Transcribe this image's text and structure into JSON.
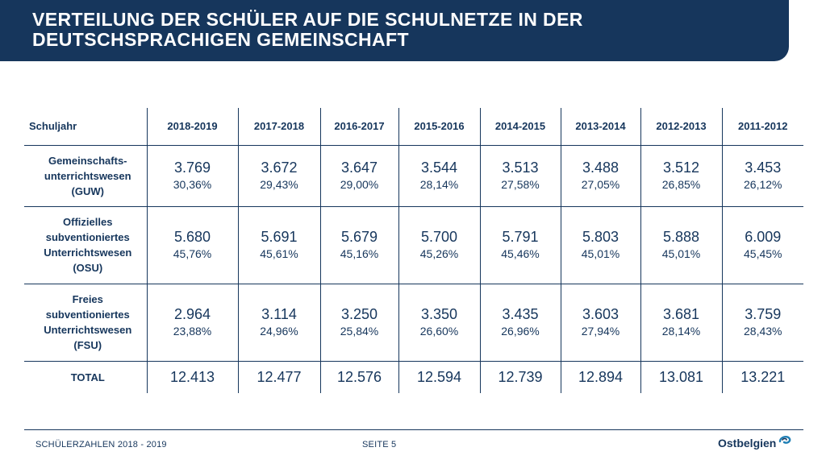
{
  "title": "VERTEILUNG DER SCHÜLER AUF DIE SCHULNETZE IN DER DEUTSCHSPRACHIGEN GEMEINSCHAFT",
  "table": {
    "header_label": "Schuljahr",
    "years": [
      "2018-2019",
      "2017-2018",
      "2016-2017",
      "2015-2016",
      "2014-2015",
      "2013-2014",
      "2012-2013",
      "2011-2012"
    ],
    "rows": [
      {
        "label_lines": [
          "Gemeinschafts-",
          "unterrichtswesen",
          "(GUW)"
        ],
        "values": [
          {
            "count": "3.769",
            "pct": "30,36%"
          },
          {
            "count": "3.672",
            "pct": "29,43%"
          },
          {
            "count": "3.647",
            "pct": "29,00%"
          },
          {
            "count": "3.544",
            "pct": "28,14%"
          },
          {
            "count": "3.513",
            "pct": "27,58%"
          },
          {
            "count": "3.488",
            "pct": "27,05%"
          },
          {
            "count": "3.512",
            "pct": "26,85%"
          },
          {
            "count": "3.453",
            "pct": "26,12%"
          }
        ]
      },
      {
        "label_lines": [
          "Offizielles",
          "subventioniertes",
          "Unterrichtswesen",
          "(OSU)"
        ],
        "values": [
          {
            "count": "5.680",
            "pct": "45,76%"
          },
          {
            "count": "5.691",
            "pct": "45,61%"
          },
          {
            "count": "5.679",
            "pct": "45,16%"
          },
          {
            "count": "5.700",
            "pct": "45,26%"
          },
          {
            "count": "5.791",
            "pct": "45,46%"
          },
          {
            "count": "5.803",
            "pct": "45,01%"
          },
          {
            "count": "5.888",
            "pct": "45,01%"
          },
          {
            "count": "6.009",
            "pct": "45,45%"
          }
        ]
      },
      {
        "label_lines": [
          "Freies",
          "subventioniertes",
          "Unterrichtswesen",
          "(FSU)"
        ],
        "values": [
          {
            "count": "2.964",
            "pct": "23,88%"
          },
          {
            "count": "3.114",
            "pct": "24,96%"
          },
          {
            "count": "3.250",
            "pct": "25,84%"
          },
          {
            "count": "3.350",
            "pct": "26,60%"
          },
          {
            "count": "3.435",
            "pct": "26,96%"
          },
          {
            "count": "3.603",
            "pct": "27,94%"
          },
          {
            "count": "3.681",
            "pct": "28,14%"
          },
          {
            "count": "3.759",
            "pct": "28,43%"
          }
        ]
      }
    ],
    "total_label": "TOTAL",
    "totals": [
      "12.413",
      "12.477",
      "12.576",
      "12.594",
      "12.739",
      "12.894",
      "13.081",
      "13.221"
    ]
  },
  "footer": {
    "left": "SCHÜLERZAHLEN 2018 - 2019",
    "page": "SEITE 5",
    "logo_text": "Ostbelgien"
  },
  "colors": {
    "brand_navy": "#16365c",
    "logo_accent": "#1f7fb5"
  }
}
